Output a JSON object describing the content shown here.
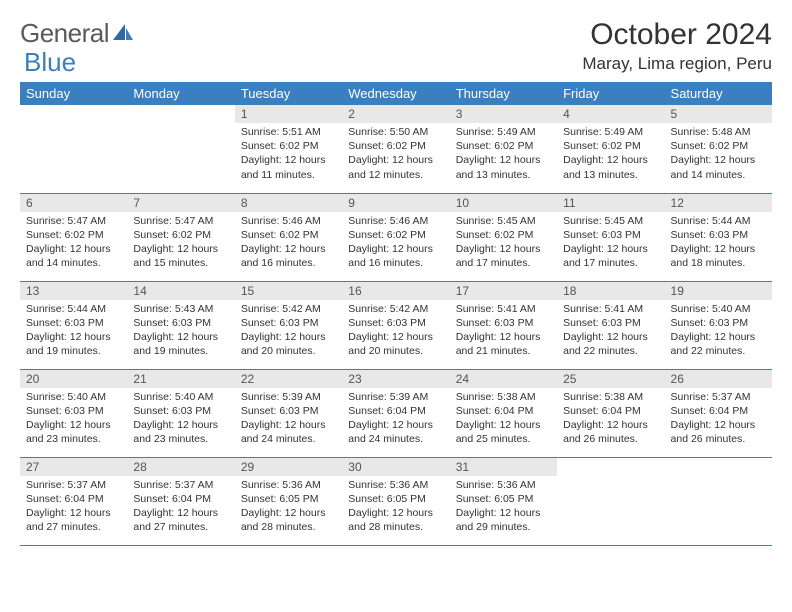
{
  "logo": {
    "text1": "General",
    "text2": "Blue"
  },
  "title": "October 2024",
  "location": "Maray, Lima region, Peru",
  "colors": {
    "header_bg": "#3a7fbf",
    "header_text": "#ffffff",
    "daynum_bg": "#e8e8e8",
    "text": "#333333",
    "logo_gray": "#5a5a5a",
    "logo_blue": "#3a7fbf",
    "border": "#3a7fbf"
  },
  "weekdays": [
    "Sunday",
    "Monday",
    "Tuesday",
    "Wednesday",
    "Thursday",
    "Friday",
    "Saturday"
  ],
  "weeks": [
    [
      null,
      null,
      {
        "n": "1",
        "sr": "5:51 AM",
        "ss": "6:02 PM",
        "dl": "12 hours and 11 minutes."
      },
      {
        "n": "2",
        "sr": "5:50 AM",
        "ss": "6:02 PM",
        "dl": "12 hours and 12 minutes."
      },
      {
        "n": "3",
        "sr": "5:49 AM",
        "ss": "6:02 PM",
        "dl": "12 hours and 13 minutes."
      },
      {
        "n": "4",
        "sr": "5:49 AM",
        "ss": "6:02 PM",
        "dl": "12 hours and 13 minutes."
      },
      {
        "n": "5",
        "sr": "5:48 AM",
        "ss": "6:02 PM",
        "dl": "12 hours and 14 minutes."
      }
    ],
    [
      {
        "n": "6",
        "sr": "5:47 AM",
        "ss": "6:02 PM",
        "dl": "12 hours and 14 minutes."
      },
      {
        "n": "7",
        "sr": "5:47 AM",
        "ss": "6:02 PM",
        "dl": "12 hours and 15 minutes."
      },
      {
        "n": "8",
        "sr": "5:46 AM",
        "ss": "6:02 PM",
        "dl": "12 hours and 16 minutes."
      },
      {
        "n": "9",
        "sr": "5:46 AM",
        "ss": "6:02 PM",
        "dl": "12 hours and 16 minutes."
      },
      {
        "n": "10",
        "sr": "5:45 AM",
        "ss": "6:02 PM",
        "dl": "12 hours and 17 minutes."
      },
      {
        "n": "11",
        "sr": "5:45 AM",
        "ss": "6:03 PM",
        "dl": "12 hours and 17 minutes."
      },
      {
        "n": "12",
        "sr": "5:44 AM",
        "ss": "6:03 PM",
        "dl": "12 hours and 18 minutes."
      }
    ],
    [
      {
        "n": "13",
        "sr": "5:44 AM",
        "ss": "6:03 PM",
        "dl": "12 hours and 19 minutes."
      },
      {
        "n": "14",
        "sr": "5:43 AM",
        "ss": "6:03 PM",
        "dl": "12 hours and 19 minutes."
      },
      {
        "n": "15",
        "sr": "5:42 AM",
        "ss": "6:03 PM",
        "dl": "12 hours and 20 minutes."
      },
      {
        "n": "16",
        "sr": "5:42 AM",
        "ss": "6:03 PM",
        "dl": "12 hours and 20 minutes."
      },
      {
        "n": "17",
        "sr": "5:41 AM",
        "ss": "6:03 PM",
        "dl": "12 hours and 21 minutes."
      },
      {
        "n": "18",
        "sr": "5:41 AM",
        "ss": "6:03 PM",
        "dl": "12 hours and 22 minutes."
      },
      {
        "n": "19",
        "sr": "5:40 AM",
        "ss": "6:03 PM",
        "dl": "12 hours and 22 minutes."
      }
    ],
    [
      {
        "n": "20",
        "sr": "5:40 AM",
        "ss": "6:03 PM",
        "dl": "12 hours and 23 minutes."
      },
      {
        "n": "21",
        "sr": "5:40 AM",
        "ss": "6:03 PM",
        "dl": "12 hours and 23 minutes."
      },
      {
        "n": "22",
        "sr": "5:39 AM",
        "ss": "6:03 PM",
        "dl": "12 hours and 24 minutes."
      },
      {
        "n": "23",
        "sr": "5:39 AM",
        "ss": "6:04 PM",
        "dl": "12 hours and 24 minutes."
      },
      {
        "n": "24",
        "sr": "5:38 AM",
        "ss": "6:04 PM",
        "dl": "12 hours and 25 minutes."
      },
      {
        "n": "25",
        "sr": "5:38 AM",
        "ss": "6:04 PM",
        "dl": "12 hours and 26 minutes."
      },
      {
        "n": "26",
        "sr": "5:37 AM",
        "ss": "6:04 PM",
        "dl": "12 hours and 26 minutes."
      }
    ],
    [
      {
        "n": "27",
        "sr": "5:37 AM",
        "ss": "6:04 PM",
        "dl": "12 hours and 27 minutes."
      },
      {
        "n": "28",
        "sr": "5:37 AM",
        "ss": "6:04 PM",
        "dl": "12 hours and 27 minutes."
      },
      {
        "n": "29",
        "sr": "5:36 AM",
        "ss": "6:05 PM",
        "dl": "12 hours and 28 minutes."
      },
      {
        "n": "30",
        "sr": "5:36 AM",
        "ss": "6:05 PM",
        "dl": "12 hours and 28 minutes."
      },
      {
        "n": "31",
        "sr": "5:36 AM",
        "ss": "6:05 PM",
        "dl": "12 hours and 29 minutes."
      },
      null,
      null
    ]
  ],
  "labels": {
    "sunrise": "Sunrise:",
    "sunset": "Sunset:",
    "daylight": "Daylight:"
  }
}
